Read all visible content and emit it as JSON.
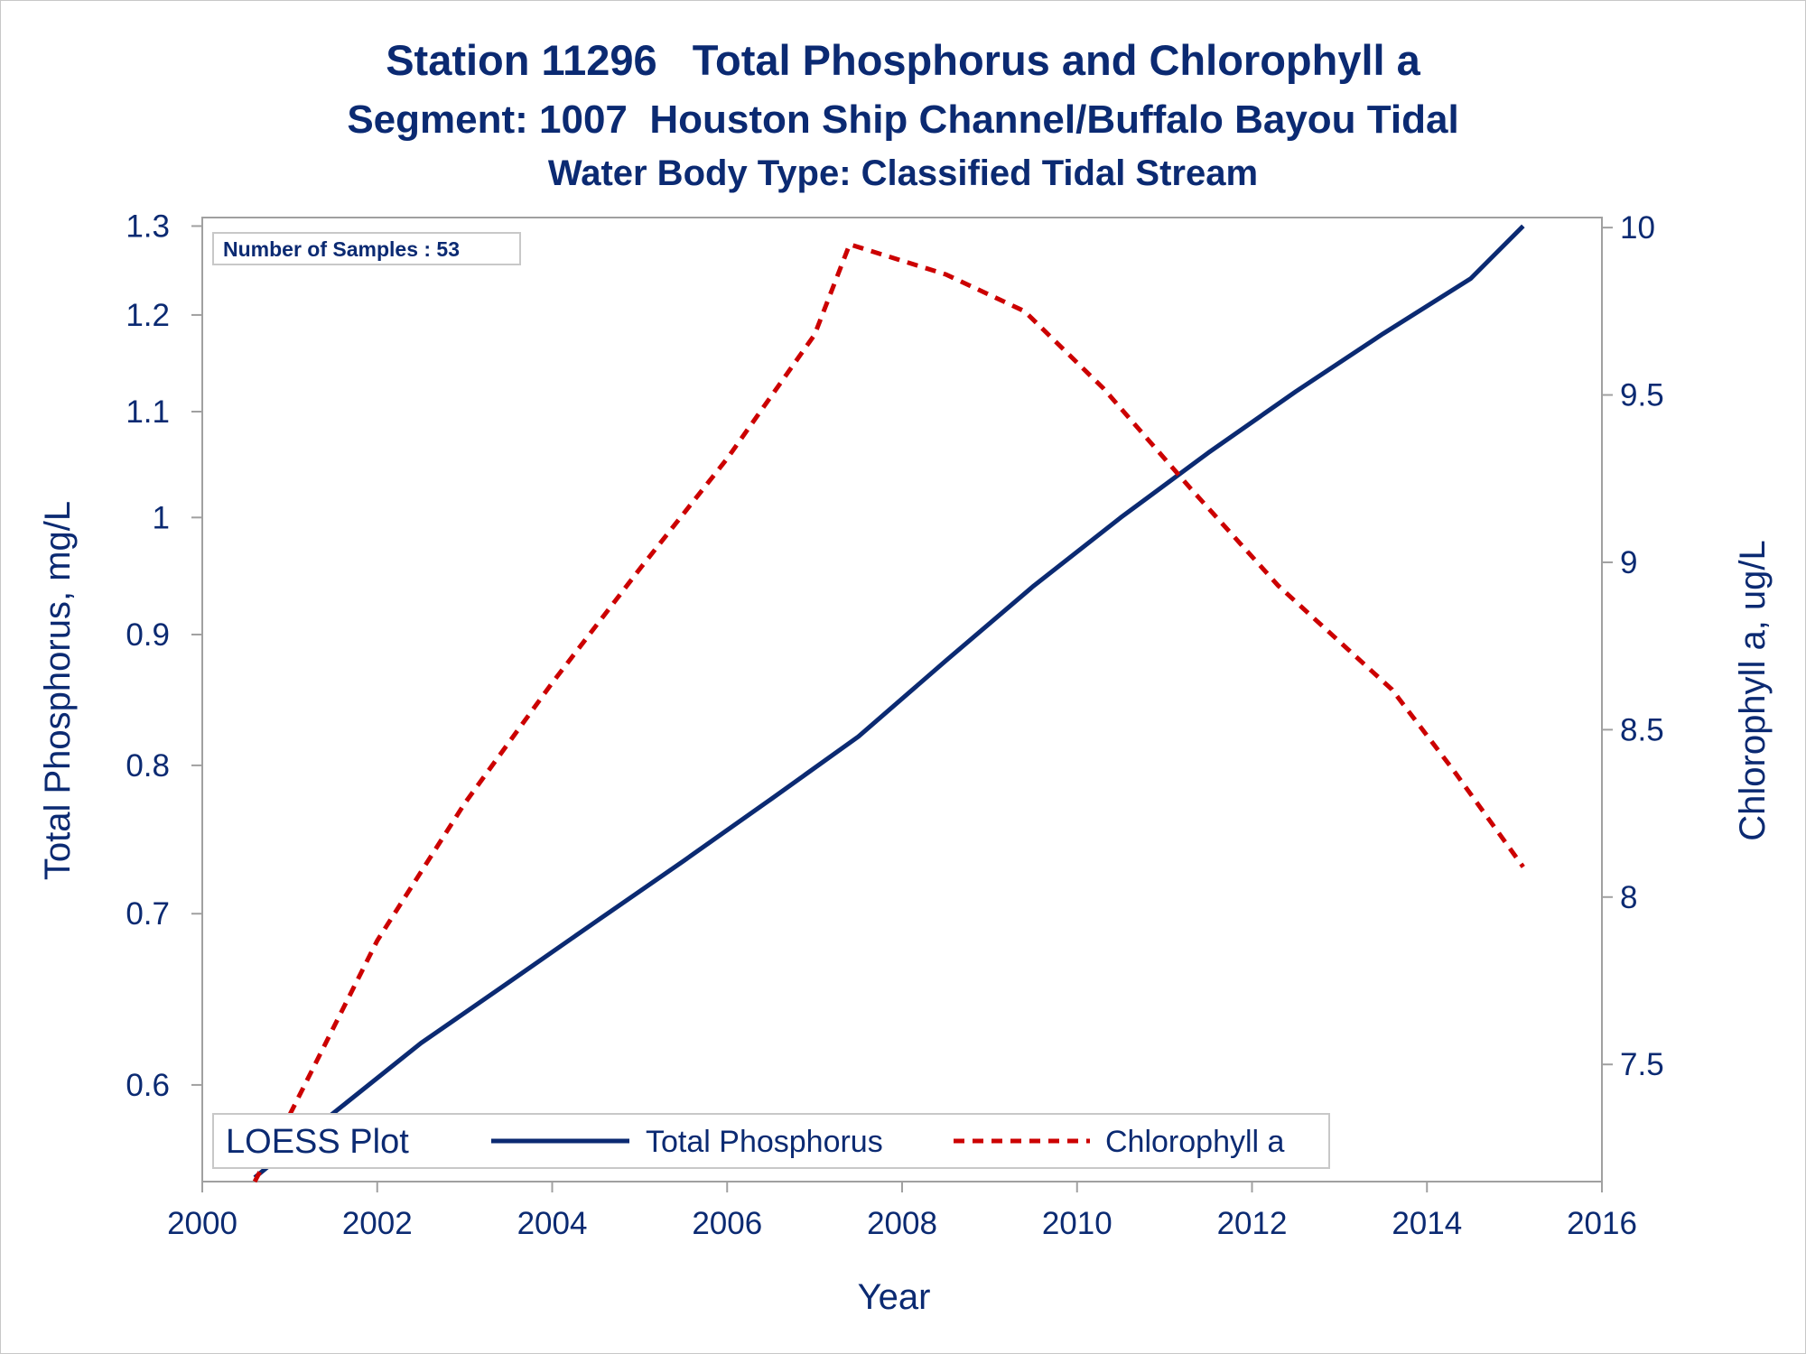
{
  "titles": {
    "line1": "Station 11296   Total Phosphorus and Chlorophyll a",
    "line2": "Segment: 1007  Houston Ship Channel/Buffalo Bayou Tidal",
    "line3": "Water Body Type: Classified Tidal Stream"
  },
  "inset": {
    "label": "Number of Samples : 53"
  },
  "legend": {
    "title": "LOESS Plot",
    "items": [
      {
        "label": "Total Phosphorus"
      },
      {
        "label": "Chlorophyll a"
      }
    ]
  },
  "colors": {
    "text": "#0b2a72",
    "phosphorus": "#0b2a72",
    "chlorophyll": "#cc0000",
    "frame": "#a0a0a0"
  },
  "chart_data": {
    "type": "line",
    "xlabel": "Year",
    "ylabel": "Total Phosphorus, mg/L",
    "y2label": "Chlorophyll a, ug/L",
    "xlim": [
      2000,
      2016
    ],
    "ylim": [
      0.55,
      1.31
    ],
    "yscale": "log",
    "y2lim": [
      7.15,
      10.03
    ],
    "xticks": [
      "2000",
      "2002",
      "2004",
      "2006",
      "2008",
      "2010",
      "2012",
      "2014",
      "2016"
    ],
    "yticks": [
      "0.6",
      "0.7",
      "0.8",
      "0.9",
      "1",
      "1.1",
      "1.2",
      "1.3"
    ],
    "y2ticks": [
      "7.5",
      "8",
      "8.5",
      "9",
      "9.5",
      "10"
    ],
    "grid": false,
    "legend_position": "bottom-inside",
    "series": [
      {
        "name": "Total Phosphorus",
        "axis": "left",
        "style": "solid",
        "x": [
          2000.6,
          2001.5,
          2002.5,
          2003.5,
          2004.5,
          2005.5,
          2006.5,
          2007.5,
          2008.5,
          2009.5,
          2010.5,
          2011.5,
          2012.5,
          2013.5,
          2014.5,
          2015.1
        ],
        "y": [
          0.552,
          0.585,
          0.623,
          0.658,
          0.695,
          0.734,
          0.776,
          0.821,
          0.879,
          0.94,
          1.0,
          1.06,
          1.12,
          1.18,
          1.24,
          1.3
        ]
      },
      {
        "name": "Chlorophyll a",
        "axis": "right",
        "style": "dashed",
        "x": [
          2000.6,
          2001.0,
          2002.0,
          2003.0,
          2004.0,
          2005.0,
          2006.0,
          2007.0,
          2007.4,
          2008.5,
          2009.4,
          2010.3,
          2011.3,
          2012.3,
          2013.6,
          2014.3,
          2015.1
        ],
        "y": [
          7.15,
          7.35,
          7.87,
          8.28,
          8.64,
          8.98,
          9.31,
          9.68,
          9.95,
          9.86,
          9.75,
          9.52,
          9.22,
          8.93,
          8.62,
          8.38,
          8.09
        ]
      }
    ]
  }
}
